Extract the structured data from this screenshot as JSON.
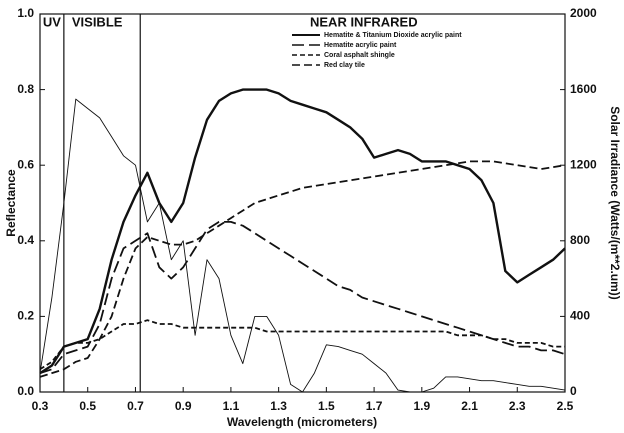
{
  "chart_data": {
    "type": "line",
    "xlabel": "Wavelength (micrometers)",
    "ylabel": "Reflectance",
    "y2label": "Solar Irradiance (Watts/(m**2.um))",
    "regions": [
      "UV",
      "VISIBLE",
      "NEAR INFRARED"
    ],
    "region_boundaries": [
      0.4,
      0.72
    ],
    "xlim": [
      0.3,
      2.5
    ],
    "xticks": [
      0.3,
      0.5,
      0.7,
      0.9,
      1.1,
      1.3,
      1.5,
      1.7,
      1.9,
      2.1,
      2.3,
      2.5
    ],
    "ylim": [
      0,
      1
    ],
    "yticks": [
      {
        "value": 0,
        "label": "0.0"
      },
      {
        "value": 0.2,
        "label": "0.2"
      },
      {
        "value": 0.4,
        "label": "0.4"
      },
      {
        "value": 0.6,
        "label": "0.6"
      },
      {
        "value": 0.8,
        "label": "0.8"
      },
      {
        "value": 1,
        "label": "1.0"
      }
    ],
    "y2lim": [
      0,
      2000
    ],
    "y2ticks": [
      0,
      400,
      800,
      1200,
      1600,
      2000
    ],
    "x": [
      0.3,
      0.35,
      0.4,
      0.45,
      0.5,
      0.55,
      0.6,
      0.65,
      0.7,
      0.75,
      0.8,
      0.85,
      0.9,
      0.95,
      1.0,
      1.05,
      1.1,
      1.15,
      1.2,
      1.25,
      1.3,
      1.35,
      1.4,
      1.45,
      1.5,
      1.55,
      1.6,
      1.65,
      1.7,
      1.75,
      1.8,
      1.85,
      1.9,
      1.95,
      2.0,
      2.05,
      2.1,
      2.15,
      2.2,
      2.25,
      2.3,
      2.35,
      2.4,
      2.45,
      2.5
    ],
    "series": [
      {
        "name": "Hematite & Titanium Dioxide acrylic paint",
        "color": "#111111",
        "dash": "solid",
        "values": [
          0.05,
          0.07,
          0.12,
          0.13,
          0.14,
          0.22,
          0.35,
          0.45,
          0.52,
          0.58,
          0.5,
          0.45,
          0.5,
          0.62,
          0.72,
          0.77,
          0.79,
          0.8,
          0.8,
          0.8,
          0.79,
          0.77,
          0.76,
          0.75,
          0.74,
          0.72,
          0.7,
          0.67,
          0.62,
          0.63,
          0.64,
          0.63,
          0.61,
          0.61,
          0.61,
          0.6,
          0.59,
          0.56,
          0.5,
          0.32,
          0.29,
          0.31,
          0.33,
          0.35,
          0.38
        ]
      },
      {
        "name": "Hematite acrylic paint",
        "color": "#111111",
        "dash": "long-dash",
        "values": [
          0.05,
          0.06,
          0.1,
          0.11,
          0.12,
          0.18,
          0.3,
          0.38,
          0.4,
          0.42,
          0.33,
          0.3,
          0.33,
          0.38,
          0.43,
          0.45,
          0.45,
          0.44,
          0.42,
          0.4,
          0.38,
          0.36,
          0.34,
          0.32,
          0.3,
          0.28,
          0.27,
          0.25,
          0.24,
          0.23,
          0.22,
          0.21,
          0.2,
          0.19,
          0.18,
          0.17,
          0.16,
          0.15,
          0.14,
          0.13,
          0.12,
          0.12,
          0.11,
          0.11,
          0.1
        ]
      },
      {
        "name": "Coral asphalt shingle",
        "color": "#111111",
        "dash": "short-dash",
        "values": [
          0.06,
          0.08,
          0.12,
          0.13,
          0.13,
          0.14,
          0.16,
          0.18,
          0.18,
          0.19,
          0.18,
          0.18,
          0.17,
          0.17,
          0.17,
          0.17,
          0.17,
          0.17,
          0.17,
          0.16,
          0.16,
          0.16,
          0.16,
          0.16,
          0.16,
          0.16,
          0.16,
          0.16,
          0.16,
          0.16,
          0.16,
          0.16,
          0.16,
          0.16,
          0.16,
          0.15,
          0.15,
          0.15,
          0.14,
          0.14,
          0.13,
          0.13,
          0.13,
          0.12,
          0.12
        ]
      },
      {
        "name": "Red clay tile",
        "color": "#111111",
        "dash": "dash",
        "values": [
          0.04,
          0.05,
          0.06,
          0.08,
          0.09,
          0.14,
          0.2,
          0.3,
          0.38,
          0.41,
          0.4,
          0.39,
          0.39,
          0.4,
          0.42,
          0.44,
          0.46,
          0.48,
          0.5,
          0.51,
          0.52,
          0.53,
          0.54,
          0.545,
          0.55,
          0.555,
          0.56,
          0.565,
          0.57,
          0.575,
          0.58,
          0.585,
          0.59,
          0.595,
          0.6,
          0.605,
          0.61,
          0.61,
          0.61,
          0.605,
          0.6,
          0.595,
          0.59,
          0.595,
          0.6
        ]
      },
      {
        "color": "#111111",
        "dash": "solid",
        "axis": "y2",
        "values": [
          100,
          500,
          1000,
          1550,
          1500,
          1450,
          1350,
          1250,
          1200,
          900,
          1000,
          700,
          800,
          300,
          700,
          600,
          300,
          150,
          400,
          400,
          300,
          40,
          0,
          100,
          250,
          240,
          220,
          200,
          150,
          100,
          10,
          0,
          0,
          20,
          80,
          80,
          70,
          60,
          60,
          50,
          40,
          30,
          30,
          20,
          10
        ]
      }
    ]
  }
}
